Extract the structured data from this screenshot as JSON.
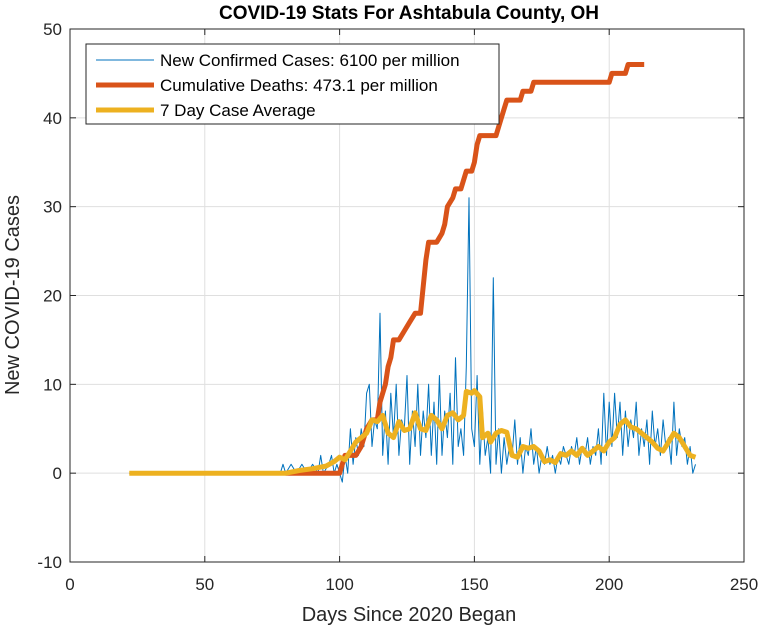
{
  "chart_data": {
    "type": "line",
    "title": "COVID-19 Stats For Ashtabula County, OH",
    "xlabel": "Days Since 2020 Began",
    "ylabel": "New COVID-19 Cases",
    "xlim": [
      0,
      250
    ],
    "ylim": [
      -10,
      50
    ],
    "xticks": [
      0,
      50,
      100,
      150,
      200,
      250
    ],
    "yticks": [
      -10,
      0,
      10,
      20,
      30,
      40,
      50
    ],
    "grid": true,
    "legend_position": "top-left",
    "series": [
      {
        "name": "New Confirmed Cases: 6100 per million",
        "color": "#0072BD",
        "width": 1,
        "points": [
          [
            22,
            0
          ],
          [
            78,
            0
          ],
          [
            79,
            1
          ],
          [
            80,
            0
          ],
          [
            82,
            1
          ],
          [
            84,
            0
          ],
          [
            86,
            1
          ],
          [
            88,
            0
          ],
          [
            90,
            1
          ],
          [
            92,
            0
          ],
          [
            93,
            2
          ],
          [
            94,
            0
          ],
          [
            96,
            1
          ],
          [
            97,
            2
          ],
          [
            98,
            0
          ],
          [
            99,
            1
          ],
          [
            100,
            0
          ],
          [
            101,
            -1
          ],
          [
            102,
            2
          ],
          [
            103,
            0
          ],
          [
            104,
            5
          ],
          [
            105,
            1
          ],
          [
            106,
            4
          ],
          [
            107,
            2
          ],
          [
            108,
            5
          ],
          [
            109,
            3
          ],
          [
            110,
            9
          ],
          [
            111,
            10
          ],
          [
            112,
            3
          ],
          [
            113,
            6
          ],
          [
            114,
            5
          ],
          [
            115,
            18
          ],
          [
            116,
            2
          ],
          [
            117,
            7
          ],
          [
            118,
            1
          ],
          [
            119,
            9
          ],
          [
            120,
            4
          ],
          [
            121,
            10
          ],
          [
            122,
            2
          ],
          [
            123,
            6
          ],
          [
            124,
            5
          ],
          [
            125,
            11
          ],
          [
            126,
            1
          ],
          [
            127,
            7
          ],
          [
            128,
            3
          ],
          [
            129,
            10
          ],
          [
            130,
            2
          ],
          [
            131,
            7
          ],
          [
            132,
            4
          ],
          [
            133,
            10
          ],
          [
            134,
            2
          ],
          [
            135,
            8
          ],
          [
            136,
            1
          ],
          [
            137,
            11
          ],
          [
            138,
            2
          ],
          [
            139,
            7
          ],
          [
            140,
            4
          ],
          [
            141,
            9
          ],
          [
            142,
            1
          ],
          [
            143,
            13
          ],
          [
            144,
            3
          ],
          [
            145,
            5
          ],
          [
            146,
            2
          ],
          [
            147,
            12
          ],
          [
            148,
            31
          ],
          [
            149,
            5
          ],
          [
            150,
            3
          ],
          [
            151,
            11
          ],
          [
            152,
            1
          ],
          [
            153,
            7
          ],
          [
            154,
            2
          ],
          [
            155,
            4
          ],
          [
            156,
            0
          ],
          [
            157,
            22
          ],
          [
            158,
            1
          ],
          [
            159,
            5
          ],
          [
            160,
            0
          ],
          [
            161,
            4
          ],
          [
            162,
            1
          ],
          [
            163,
            3
          ],
          [
            164,
            2
          ],
          [
            165,
            6
          ],
          [
            166,
            1
          ],
          [
            167,
            4
          ],
          [
            168,
            0
          ],
          [
            169,
            3
          ],
          [
            170,
            2
          ],
          [
            171,
            5
          ],
          [
            172,
            1
          ],
          [
            173,
            3
          ],
          [
            174,
            0
          ],
          [
            175,
            2
          ],
          [
            176,
            1
          ],
          [
            177,
            3
          ],
          [
            178,
            1
          ],
          [
            179,
            2
          ],
          [
            180,
            0
          ],
          [
            181,
            2
          ],
          [
            182,
            1
          ],
          [
            183,
            3
          ],
          [
            184,
            2
          ],
          [
            185,
            1
          ],
          [
            186,
            3
          ],
          [
            187,
            2
          ],
          [
            188,
            4
          ],
          [
            189,
            1
          ],
          [
            190,
            3
          ],
          [
            191,
            2
          ],
          [
            192,
            4
          ],
          [
            193,
            1
          ],
          [
            194,
            3
          ],
          [
            195,
            2
          ],
          [
            196,
            5
          ],
          [
            197,
            1
          ],
          [
            198,
            9
          ],
          [
            199,
            2
          ],
          [
            200,
            8
          ],
          [
            201,
            3
          ],
          [
            202,
            9
          ],
          [
            203,
            4
          ],
          [
            204,
            8
          ],
          [
            205,
            2
          ],
          [
            206,
            7
          ],
          [
            207,
            3
          ],
          [
            208,
            6
          ],
          [
            209,
            4
          ],
          [
            210,
            8
          ],
          [
            211,
            2
          ],
          [
            212,
            5
          ],
          [
            213,
            3
          ],
          [
            214,
            6
          ],
          [
            215,
            1
          ],
          [
            216,
            7
          ],
          [
            217,
            3
          ],
          [
            218,
            5
          ],
          [
            219,
            2
          ],
          [
            220,
            6
          ],
          [
            221,
            3
          ],
          [
            222,
            4
          ],
          [
            223,
            1
          ],
          [
            224,
            8
          ],
          [
            225,
            2
          ],
          [
            226,
            5
          ],
          [
            227,
            3
          ],
          [
            228,
            4
          ],
          [
            229,
            1
          ],
          [
            230,
            3
          ],
          [
            231,
            0
          ],
          [
            232,
            1
          ]
        ]
      },
      {
        "name": "Cumulative Deaths: 473.1 per million",
        "color": "#D95319",
        "width": 5,
        "points": [
          [
            80,
            0
          ],
          [
            100,
            0
          ],
          [
            102,
            2
          ],
          [
            106,
            2
          ],
          [
            108,
            3
          ],
          [
            110,
            5
          ],
          [
            112,
            6
          ],
          [
            114,
            6
          ],
          [
            115,
            8
          ],
          [
            117,
            10
          ],
          [
            118,
            12
          ],
          [
            119,
            13
          ],
          [
            120,
            15
          ],
          [
            122,
            15
          ],
          [
            124,
            16
          ],
          [
            126,
            17
          ],
          [
            128,
            18
          ],
          [
            130,
            18
          ],
          [
            131,
            21
          ],
          [
            132,
            24
          ],
          [
            133,
            26
          ],
          [
            136,
            26
          ],
          [
            138,
            27
          ],
          [
            139,
            28
          ],
          [
            140,
            30
          ],
          [
            142,
            31
          ],
          [
            143,
            32
          ],
          [
            145,
            32
          ],
          [
            146,
            33
          ],
          [
            147,
            34
          ],
          [
            149,
            34
          ],
          [
            150,
            35
          ],
          [
            151,
            37
          ],
          [
            152,
            38
          ],
          [
            158,
            38
          ],
          [
            159,
            39
          ],
          [
            160,
            40
          ],
          [
            161,
            41
          ],
          [
            162,
            42
          ],
          [
            167,
            42
          ],
          [
            168,
            43
          ],
          [
            171,
            43
          ],
          [
            172,
            44
          ],
          [
            195,
            44
          ],
          [
            200,
            44
          ],
          [
            201,
            45
          ],
          [
            206,
            45
          ],
          [
            207,
            46
          ],
          [
            213,
            46
          ]
        ]
      },
      {
        "name": "7 Day Case Average",
        "color": "#EDB120",
        "width": 5,
        "points": [
          [
            22,
            0
          ],
          [
            80,
            0
          ],
          [
            85,
            0.3
          ],
          [
            90,
            0.5
          ],
          [
            95,
            0.8
          ],
          [
            98,
            1.3
          ],
          [
            100,
            1.8
          ],
          [
            102,
            1.5
          ],
          [
            104,
            2.5
          ],
          [
            106,
            3.5
          ],
          [
            108,
            4.0
          ],
          [
            110,
            4.5
          ],
          [
            112,
            6.0
          ],
          [
            114,
            5.8
          ],
          [
            116,
            6.5
          ],
          [
            118,
            4.5
          ],
          [
            120,
            4.0
          ],
          [
            122,
            5.8
          ],
          [
            124,
            4.8
          ],
          [
            126,
            5.0
          ],
          [
            128,
            6.8
          ],
          [
            130,
            5.0
          ],
          [
            132,
            4.8
          ],
          [
            134,
            6.5
          ],
          [
            136,
            6.0
          ],
          [
            138,
            5.0
          ],
          [
            140,
            6.5
          ],
          [
            142,
            6.8
          ],
          [
            144,
            6.0
          ],
          [
            146,
            6.5
          ],
          [
            147,
            9.2
          ],
          [
            149,
            9.0
          ],
          [
            150,
            9.3
          ],
          [
            152,
            8.6
          ],
          [
            153,
            4.0
          ],
          [
            155,
            4.5
          ],
          [
            156,
            3.5
          ],
          [
            158,
            4.5
          ],
          [
            160,
            4.8
          ],
          [
            162,
            4.6
          ],
          [
            164,
            2.0
          ],
          [
            166,
            1.8
          ],
          [
            168,
            3.0
          ],
          [
            170,
            2.8
          ],
          [
            172,
            3.0
          ],
          [
            174,
            2.5
          ],
          [
            176,
            1.3
          ],
          [
            178,
            1.5
          ],
          [
            180,
            1.2
          ],
          [
            182,
            2.2
          ],
          [
            184,
            2.0
          ],
          [
            186,
            2.5
          ],
          [
            188,
            2.0
          ],
          [
            190,
            2.8
          ],
          [
            192,
            2.0
          ],
          [
            194,
            2.5
          ],
          [
            196,
            3.0
          ],
          [
            198,
            2.5
          ],
          [
            200,
            3.5
          ],
          [
            202,
            4.0
          ],
          [
            204,
            5.5
          ],
          [
            206,
            6.0
          ],
          [
            208,
            5.2
          ],
          [
            210,
            5.0
          ],
          [
            212,
            4.5
          ],
          [
            214,
            4.0
          ],
          [
            216,
            3.5
          ],
          [
            218,
            2.8
          ],
          [
            220,
            2.5
          ],
          [
            222,
            3.5
          ],
          [
            224,
            4.5
          ],
          [
            226,
            4.0
          ],
          [
            228,
            3.0
          ],
          [
            230,
            2.0
          ],
          [
            232,
            1.8
          ]
        ]
      }
    ]
  }
}
